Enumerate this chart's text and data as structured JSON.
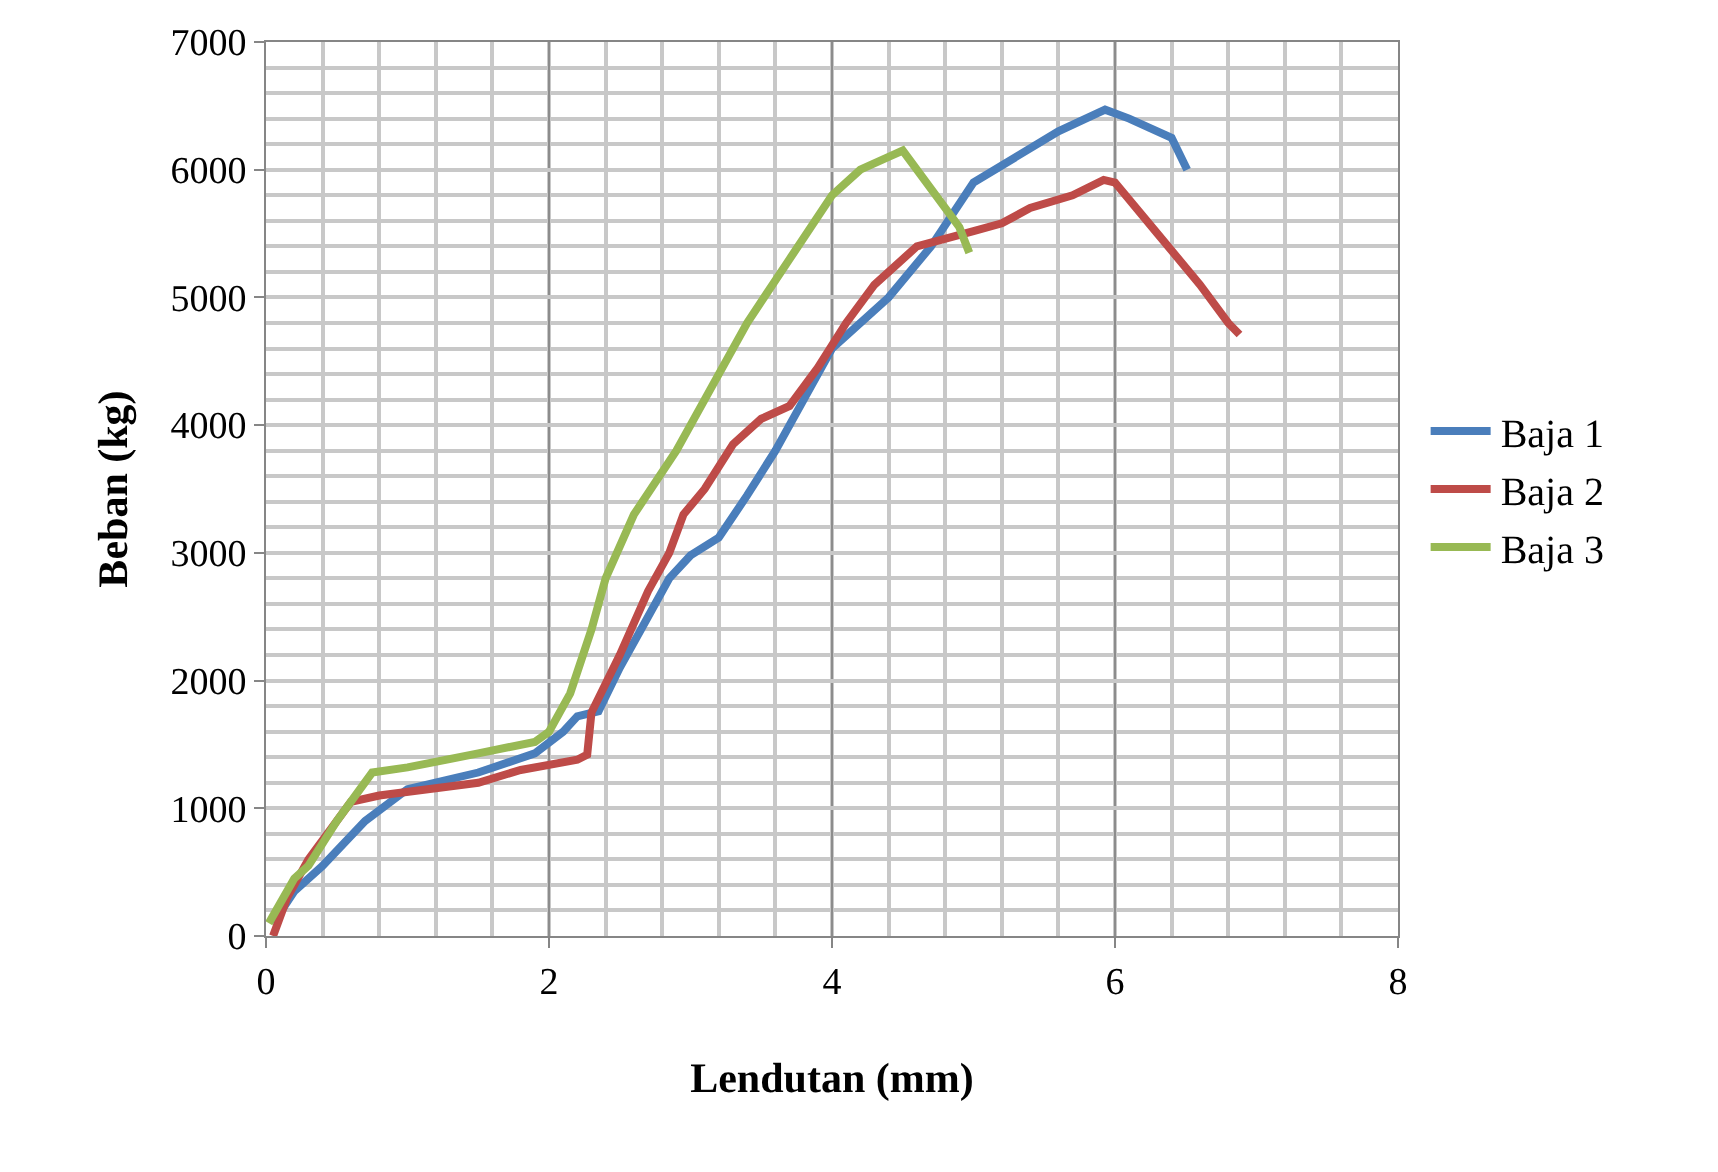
{
  "chart_data": {
    "type": "line",
    "xlabel": "Lendutan (mm)",
    "ylabel": "Beban (kg)",
    "xlim": [
      0,
      8
    ],
    "xticks": [
      0,
      2,
      4,
      6,
      8
    ],
    "ylim": [
      0,
      7000
    ],
    "yticks": [
      0,
      1000,
      2000,
      3000,
      4000,
      5000,
      6000,
      7000
    ],
    "grid": true,
    "legend": "right",
    "marker": "none",
    "line_style": "solid",
    "series": [
      {
        "name": "Baja 1",
        "color": "#4a7ebb",
        "x": [
          0.05,
          0.2,
          0.4,
          0.7,
          1.0,
          1.5,
          1.9,
          2.1,
          2.2,
          2.35,
          2.5,
          2.7,
          2.85,
          3.0,
          3.2,
          3.4,
          3.6,
          3.8,
          4.0,
          4.4,
          4.7,
          5.0,
          5.3,
          5.6,
          5.93,
          6.1,
          6.4,
          6.51
        ],
        "values": [
          100,
          350,
          550,
          900,
          1150,
          1280,
          1430,
          1600,
          1720,
          1760,
          2100,
          2500,
          2800,
          2980,
          3120,
          3450,
          3800,
          4200,
          4600,
          5000,
          5400,
          5900,
          6100,
          6300,
          6470,
          6400,
          6250,
          6000
        ]
      },
      {
        "name": "Baja 2",
        "color": "#be4b48",
        "x": [
          0.05,
          0.15,
          0.3,
          0.6,
          0.8,
          1.5,
          1.8,
          2.2,
          2.27,
          2.3,
          2.5,
          2.7,
          2.85,
          2.95,
          3.1,
          3.3,
          3.5,
          3.7,
          3.9,
          4.1,
          4.3,
          4.6,
          5.0,
          5.2,
          5.4,
          5.7,
          5.92,
          6.0,
          6.3,
          6.6,
          6.8,
          6.88
        ],
        "values": [
          0,
          300,
          600,
          1050,
          1100,
          1200,
          1300,
          1380,
          1420,
          1750,
          2200,
          2700,
          3000,
          3300,
          3500,
          3850,
          4050,
          4150,
          4450,
          4800,
          5100,
          5400,
          5520,
          5580,
          5700,
          5800,
          5920,
          5900,
          5500,
          5100,
          4800,
          4710
        ]
      },
      {
        "name": "Baja 3",
        "color": "#98b954",
        "x": [
          0.02,
          0.2,
          0.3,
          0.5,
          0.75,
          1.0,
          1.5,
          1.9,
          2.0,
          2.15,
          2.3,
          2.4,
          2.6,
          2.9,
          3.1,
          3.4,
          3.7,
          4.0,
          4.2,
          4.4,
          4.5,
          4.7,
          4.9,
          4.97
        ],
        "values": [
          100,
          450,
          550,
          900,
          1280,
          1320,
          1430,
          1520,
          1600,
          1900,
          2400,
          2800,
          3300,
          3800,
          4200,
          4800,
          5300,
          5800,
          6000,
          6100,
          6150,
          5850,
          5550,
          5350
        ]
      }
    ]
  }
}
